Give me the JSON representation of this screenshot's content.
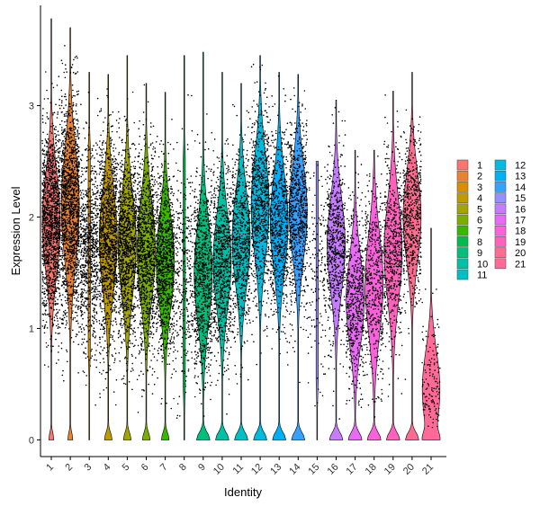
{
  "chart_data": {
    "type": "violin",
    "title": "",
    "xlabel": "Identity",
    "ylabel": "Expression Level",
    "ylim": [
      -0.15,
      3.9
    ],
    "yticks": [
      0,
      1,
      2,
      3
    ],
    "jitter_points": true,
    "legend_position": "right",
    "categories": [
      "1",
      "2",
      "3",
      "4",
      "5",
      "6",
      "7",
      "8",
      "9",
      "10",
      "11",
      "12",
      "13",
      "14",
      "15",
      "16",
      "17",
      "18",
      "19",
      "20",
      "21"
    ],
    "colors": [
      "#F8766D",
      "#EA8331",
      "#D89000",
      "#C09B00",
      "#A3A500",
      "#7CAE00",
      "#39B600",
      "#00BB4E",
      "#00BF7D",
      "#00C1A3",
      "#00BFC4",
      "#00BAE0",
      "#00B0F6",
      "#35A2FF",
      "#9590FF",
      "#C77CFF",
      "#E76BF3",
      "#FA62DB",
      "#FF62BC",
      "#FF6C91",
      "#FF6A98"
    ],
    "series": [
      {
        "name": "1",
        "zero_peak_height": 0.32,
        "expressed_frac": 0.96,
        "median": 1.95,
        "spread": 0.45,
        "max": 3.78,
        "point_density": 1.0
      },
      {
        "name": "2",
        "zero_peak_height": 0.3,
        "expressed_frac": 0.96,
        "median": 2.1,
        "spread": 0.5,
        "max": 3.7,
        "point_density": 1.0
      },
      {
        "name": "3",
        "zero_peak_height": 0.0,
        "expressed_frac": 1.0,
        "median": 1.7,
        "spread": 0.45,
        "max": 3.3,
        "point_density": 0.6
      },
      {
        "name": "4",
        "zero_peak_height": 0.35,
        "expressed_frac": 0.94,
        "median": 1.8,
        "spread": 0.45,
        "max": 3.28,
        "point_density": 0.85
      },
      {
        "name": "5",
        "zero_peak_height": 0.3,
        "expressed_frac": 0.94,
        "median": 1.75,
        "spread": 0.45,
        "max": 3.45,
        "point_density": 0.8
      },
      {
        "name": "6",
        "zero_peak_height": 0.3,
        "expressed_frac": 0.94,
        "median": 1.7,
        "spread": 0.45,
        "max": 3.2,
        "point_density": 0.75
      },
      {
        "name": "7",
        "zero_peak_height": 0.28,
        "expressed_frac": 0.94,
        "median": 1.6,
        "spread": 0.42,
        "max": 3.12,
        "point_density": 0.7
      },
      {
        "name": "8",
        "zero_peak_height": 0.0,
        "expressed_frac": 1.0,
        "median": 1.5,
        "spread": 0.5,
        "max": 3.45,
        "point_density": 0.25
      },
      {
        "name": "9",
        "zero_peak_height": 0.4,
        "expressed_frac": 0.9,
        "median": 1.5,
        "spread": 0.45,
        "max": 3.48,
        "point_density": 0.6
      },
      {
        "name": "10",
        "zero_peak_height": 0.38,
        "expressed_frac": 0.9,
        "median": 1.6,
        "spread": 0.42,
        "max": 3.3,
        "point_density": 0.55
      },
      {
        "name": "11",
        "zero_peak_height": 0.35,
        "expressed_frac": 0.9,
        "median": 1.8,
        "spread": 0.42,
        "max": 3.2,
        "point_density": 0.5
      },
      {
        "name": "12",
        "zero_peak_height": 0.4,
        "expressed_frac": 0.9,
        "median": 2.1,
        "spread": 0.45,
        "max": 3.45,
        "point_density": 0.55
      },
      {
        "name": "13",
        "zero_peak_height": 0.38,
        "expressed_frac": 0.9,
        "median": 1.95,
        "spread": 0.42,
        "max": 3.3,
        "point_density": 0.5
      },
      {
        "name": "14",
        "zero_peak_height": 0.38,
        "expressed_frac": 0.9,
        "median": 2.05,
        "spread": 0.42,
        "max": 3.28,
        "point_density": 0.55
      },
      {
        "name": "15",
        "zero_peak_height": 0.0,
        "expressed_frac": 1.0,
        "median": 1.55,
        "spread": 0.5,
        "max": 2.5,
        "point_density": 0.12
      },
      {
        "name": "16",
        "zero_peak_height": 0.38,
        "expressed_frac": 0.9,
        "median": 1.75,
        "spread": 0.42,
        "max": 3.05,
        "point_density": 0.45
      },
      {
        "name": "17",
        "zero_peak_height": 0.35,
        "expressed_frac": 0.9,
        "median": 1.25,
        "spread": 0.4,
        "max": 2.6,
        "point_density": 0.4
      },
      {
        "name": "18",
        "zero_peak_height": 0.35,
        "expressed_frac": 0.9,
        "median": 1.4,
        "spread": 0.45,
        "max": 2.6,
        "point_density": 0.35
      },
      {
        "name": "19",
        "zero_peak_height": 0.38,
        "expressed_frac": 0.9,
        "median": 1.7,
        "spread": 0.45,
        "max": 3.13,
        "point_density": 0.4
      },
      {
        "name": "20",
        "zero_peak_height": 0.42,
        "expressed_frac": 0.9,
        "median": 2.0,
        "spread": 0.4,
        "max": 3.3,
        "point_density": 0.4
      },
      {
        "name": "21",
        "zero_peak_height": 0.4,
        "expressed_frac": 0.92,
        "median": 0.45,
        "spread": 0.35,
        "max": 1.9,
        "point_density": 0.12
      }
    ]
  }
}
